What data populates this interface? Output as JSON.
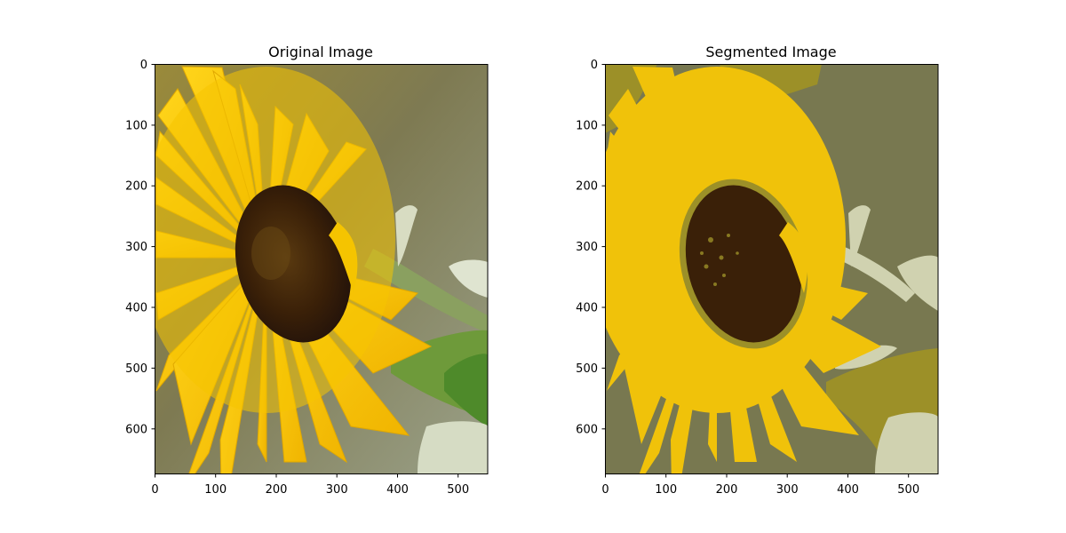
{
  "panels": [
    {
      "title": "Original Image",
      "x_ticks": [
        "0",
        "100",
        "200",
        "300",
        "400",
        "500"
      ],
      "y_ticks": [
        "0",
        "100",
        "200",
        "300",
        "400",
        "500",
        "600"
      ]
    },
    {
      "title": "Segmented Image",
      "x_ticks": [
        "0",
        "100",
        "200",
        "300",
        "400",
        "500"
      ],
      "y_ticks": [
        "0",
        "100",
        "200",
        "300",
        "400",
        "500",
        "600"
      ]
    }
  ],
  "image_extent": {
    "width": 549,
    "height": 675
  },
  "segment_colors": {
    "background": "#787850",
    "petals": "#f0c20a",
    "center": "#3a2008",
    "highlight": "#d0d2b0",
    "midtone": "#9c9028"
  }
}
